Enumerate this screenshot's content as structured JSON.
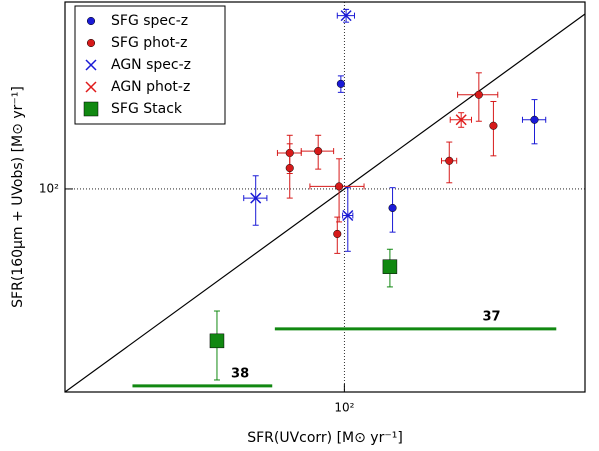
{
  "chart_data": {
    "type": "scatter",
    "x_label": "SFR(UVcorr) [M⊙ yr⁻¹]",
    "y_label": "SFR(160μm + UVobs) [M⊙ yr⁻¹]",
    "log_x": true,
    "log_y": true,
    "xlim": [
      20,
      400
    ],
    "ylim": [
      20,
      440
    ],
    "xticks": [
      {
        "value": 100,
        "label": "10²"
      }
    ],
    "yticks": [
      {
        "value": 100,
        "label": "10²"
      }
    ],
    "grid": true,
    "one_to_one_line": true,
    "legend": "upper left",
    "series": [
      {
        "name": "SFG spec-z",
        "color": "#1a1ad6",
        "marker": "circle",
        "x": [
          98,
          132,
          299
        ],
        "y": [
          230,
          86,
          173
        ],
        "xerr": [
          null,
          null,
          20
        ],
        "yerr": [
          15,
          15,
          30
        ]
      },
      {
        "name": "SFG phot-z",
        "color": "#d61a1a",
        "marker": "circle",
        "x": [
          73,
          73,
          86,
          97,
          96,
          183,
          217,
          236
        ],
        "y": [
          133,
          118,
          135,
          102,
          70,
          125,
          211,
          165
        ],
        "xerr": [
          5,
          null,
          8,
          15,
          null,
          8,
          25,
          null
        ],
        "yerr": [
          20,
          25,
          18,
          25,
          10,
          20,
          40,
          35
        ]
      },
      {
        "name": "AGN spec-z",
        "color": "#1a1ad6",
        "marker": "x",
        "x": [
          101,
          60,
          102
        ],
        "y": [
          395,
          93,
          81
        ],
        "xerr": [
          5,
          4,
          3
        ],
        "yerr": [
          20,
          18,
          20
        ]
      },
      {
        "name": "AGN phot-z",
        "color": "#e01a1a",
        "marker": "x",
        "x": [
          196
        ],
        "y": [
          173
        ],
        "xerr": [
          12
        ],
        "yerr": [
          10
        ]
      },
      {
        "name": "SFG Stack",
        "color": "#118811",
        "marker": "square",
        "x": [
          48,
          130
        ],
        "y": [
          30,
          54
        ],
        "xerr": [
          null,
          null
        ],
        "yerr": [
          8,
          8
        ]
      }
    ],
    "annotations": [
      {
        "text": "38",
        "x": [
          29.5,
          66
        ],
        "y": 21,
        "color": "#118811"
      },
      {
        "text": "37",
        "x": [
          67,
          339
        ],
        "y": 33,
        "color": "#118811"
      }
    ]
  }
}
